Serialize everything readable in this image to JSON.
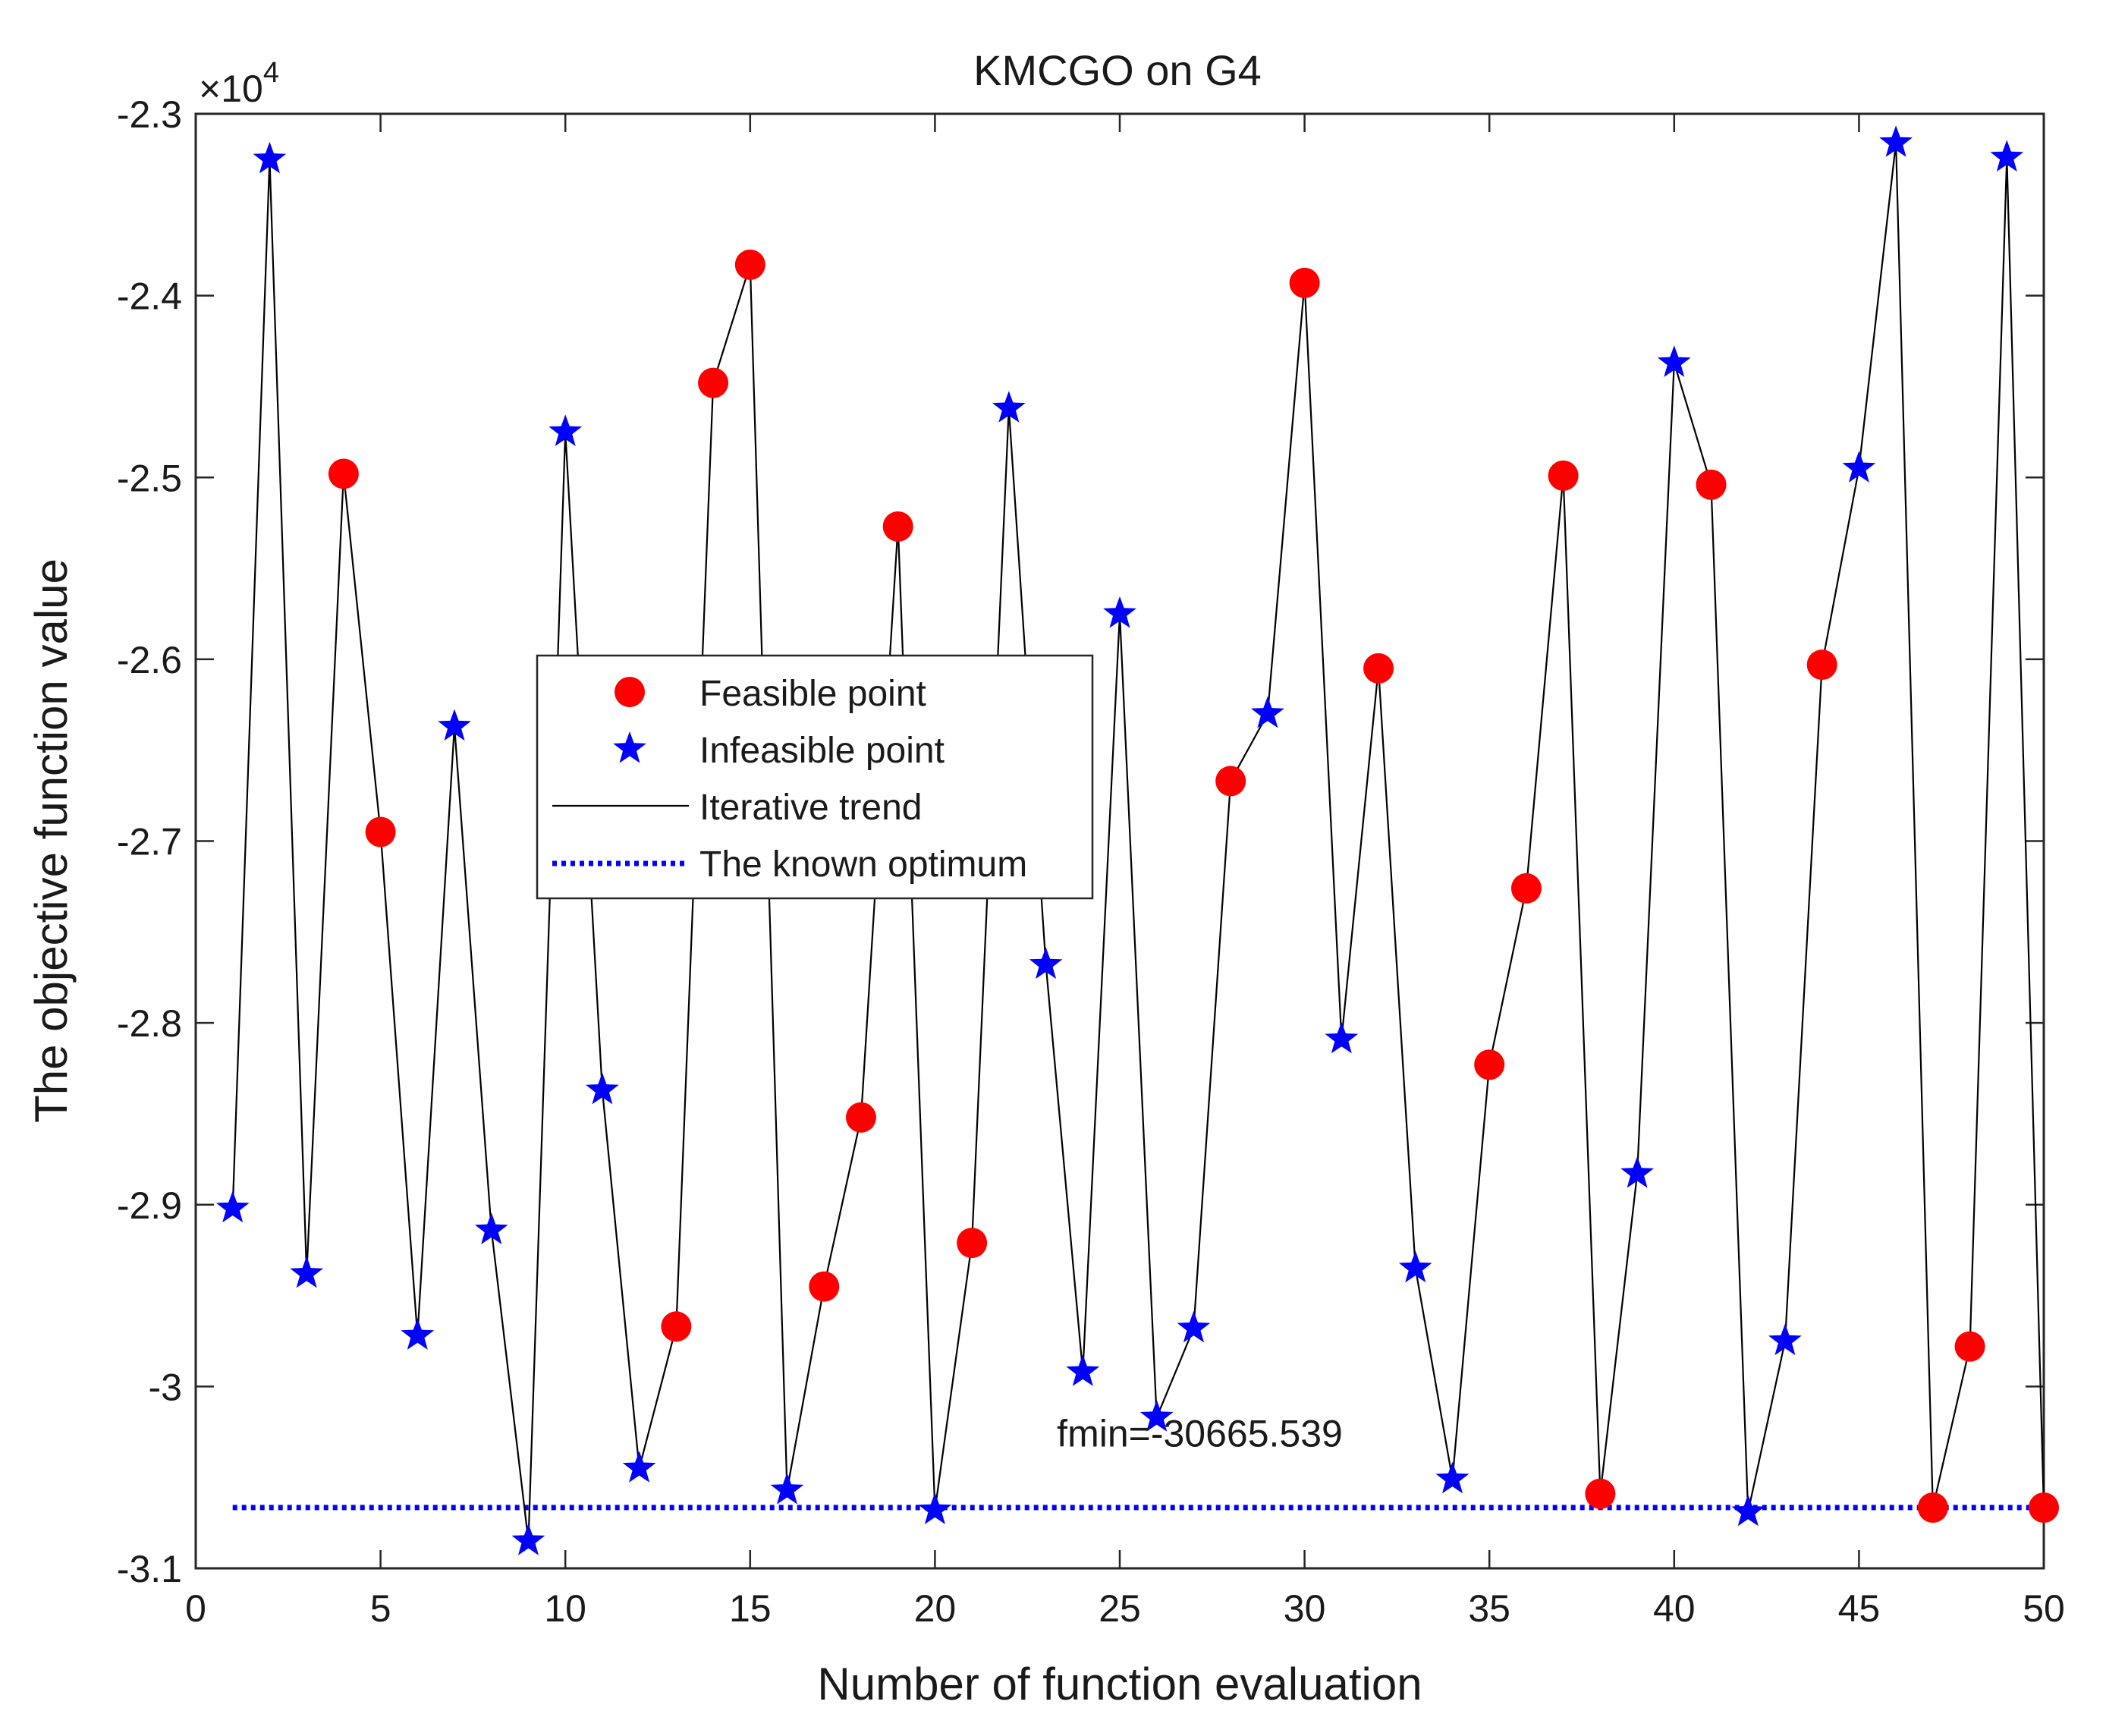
{
  "chart_data": {
    "type": "scatter",
    "title": "KMCGO on G4",
    "xlabel": "Number of function evaluation",
    "ylabel": "The objective function value",
    "xlim": [
      0,
      50
    ],
    "ylim": [
      -31000,
      -23000
    ],
    "y_exponent_label": "×10",
    "y_exponent_power": "4",
    "xticks": [
      0,
      5,
      10,
      15,
      20,
      25,
      30,
      35,
      40,
      45,
      50
    ],
    "xtick_labels": [
      "0",
      "5",
      "10",
      "15",
      "20",
      "25",
      "30",
      "35",
      "40",
      "45",
      "50"
    ],
    "yticks": [
      -23000,
      -24000,
      -25000,
      -26000,
      -27000,
      -28000,
      -29000,
      -30000,
      -31000
    ],
    "ytick_labels": [
      "-2.3",
      "-2.4",
      "-2.5",
      "-2.6",
      "-2.7",
      "-2.8",
      "-2.9",
      "-3",
      "-3.1"
    ],
    "optimum": -30665.539,
    "annotation": "fmin=-30665.539",
    "points": [
      {
        "x": 1,
        "y": -29020,
        "feasible": false
      },
      {
        "x": 2,
        "y": -23250,
        "feasible": false
      },
      {
        "x": 3,
        "y": -29380,
        "feasible": false
      },
      {
        "x": 4,
        "y": -24980,
        "feasible": true
      },
      {
        "x": 5,
        "y": -26950,
        "feasible": true
      },
      {
        "x": 6,
        "y": -29720,
        "feasible": false
      },
      {
        "x": 7,
        "y": -26370,
        "feasible": false
      },
      {
        "x": 8,
        "y": -29140,
        "feasible": false
      },
      {
        "x": 9,
        "y": -30850,
        "feasible": false
      },
      {
        "x": 10,
        "y": -24750,
        "feasible": false
      },
      {
        "x": 11,
        "y": -28370,
        "feasible": false
      },
      {
        "x": 12,
        "y": -30450,
        "feasible": false
      },
      {
        "x": 13,
        "y": -29670,
        "feasible": true
      },
      {
        "x": 14,
        "y": -24480,
        "feasible": true
      },
      {
        "x": 15,
        "y": -23830,
        "feasible": true
      },
      {
        "x": 16,
        "y": -30570,
        "feasible": false
      },
      {
        "x": 17,
        "y": -29450,
        "feasible": true
      },
      {
        "x": 18,
        "y": -28520,
        "feasible": true
      },
      {
        "x": 19,
        "y": -25270,
        "feasible": true
      },
      {
        "x": 20,
        "y": -30680,
        "feasible": false
      },
      {
        "x": 21,
        "y": -29210,
        "feasible": true
      },
      {
        "x": 22,
        "y": -24620,
        "feasible": false
      },
      {
        "x": 23,
        "y": -27680,
        "feasible": false
      },
      {
        "x": 24,
        "y": -29920,
        "feasible": false
      },
      {
        "x": 25,
        "y": -25750,
        "feasible": false
      },
      {
        "x": 26,
        "y": -30170,
        "feasible": false
      },
      {
        "x": 27,
        "y": -29680,
        "feasible": false
      },
      {
        "x": 28,
        "y": -26670,
        "feasible": true
      },
      {
        "x": 29,
        "y": -26300,
        "feasible": false
      },
      {
        "x": 30,
        "y": -23930,
        "feasible": true
      },
      {
        "x": 31,
        "y": -28090,
        "feasible": false
      },
      {
        "x": 32,
        "y": -26050,
        "feasible": true
      },
      {
        "x": 33,
        "y": -29350,
        "feasible": false
      },
      {
        "x": 34,
        "y": -30510,
        "feasible": false
      },
      {
        "x": 35,
        "y": -28230,
        "feasible": true
      },
      {
        "x": 36,
        "y": -27260,
        "feasible": true
      },
      {
        "x": 37,
        "y": -24990,
        "feasible": true
      },
      {
        "x": 38,
        "y": -30590,
        "feasible": true
      },
      {
        "x": 39,
        "y": -28830,
        "feasible": false
      },
      {
        "x": 40,
        "y": -24370,
        "feasible": false
      },
      {
        "x": 41,
        "y": -25040,
        "feasible": true
      },
      {
        "x": 42,
        "y": -30690,
        "feasible": false
      },
      {
        "x": 43,
        "y": -29750,
        "feasible": false
      },
      {
        "x": 44,
        "y": -26030,
        "feasible": true
      },
      {
        "x": 45,
        "y": -24950,
        "feasible": false
      },
      {
        "x": 46,
        "y": -23160,
        "feasible": false
      },
      {
        "x": 47,
        "y": -30666,
        "feasible": true
      },
      {
        "x": 48,
        "y": -29780,
        "feasible": true
      },
      {
        "x": 49,
        "y": -23240,
        "feasible": false
      },
      {
        "x": 50,
        "y": -30666,
        "feasible": true
      }
    ],
    "legend": {
      "position": "center-left",
      "entries": [
        "Feasible point",
        "Infeasible point",
        "Iterative trend",
        "The known optimum"
      ]
    },
    "colors": {
      "feasible": "#ff0000",
      "infeasible": "#0000ff",
      "trend": "#000000",
      "optimum": "#0000ff",
      "axes": "#262626"
    }
  }
}
